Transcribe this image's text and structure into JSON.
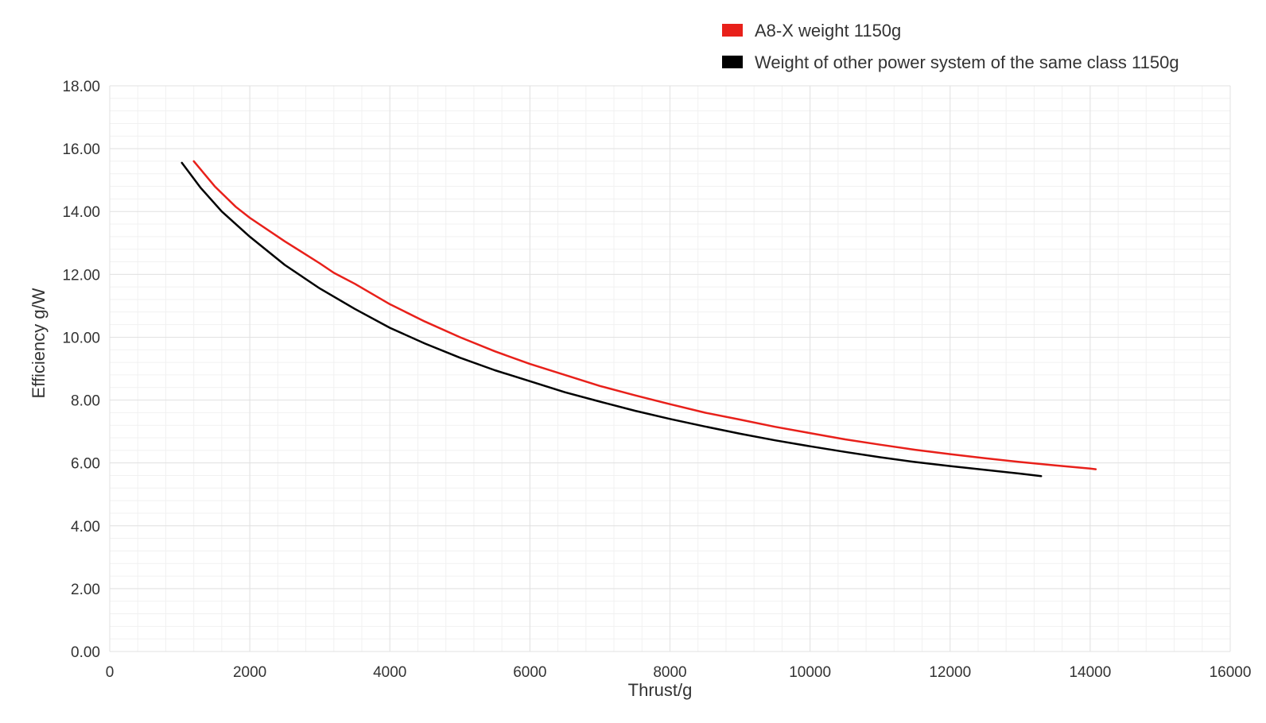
{
  "chart_data": {
    "type": "line",
    "title": "",
    "xlabel": "Thrust/g",
    "ylabel": "Efficiency g/W",
    "xlim": [
      0,
      16000
    ],
    "ylim": [
      0,
      18
    ],
    "x_ticks": [
      "0",
      "2000",
      "4000",
      "6000",
      "8000",
      "10000",
      "12000",
      "14000",
      "16000"
    ],
    "y_ticks": [
      "0.00",
      "2.00",
      "4.00",
      "6.00",
      "8.00",
      "10.00",
      "12.00",
      "14.00",
      "16.00",
      "18.00"
    ],
    "grid": true,
    "legend_position": "top-right",
    "series": [
      {
        "name": "A8-X weight 1150g",
        "color": "#e8201a",
        "points": [
          [
            1200,
            15.6
          ],
          [
            1500,
            14.8
          ],
          [
            1800,
            14.15
          ],
          [
            2000,
            13.8
          ],
          [
            2500,
            13.05
          ],
          [
            3000,
            12.35
          ],
          [
            3200,
            12.05
          ],
          [
            3500,
            11.7
          ],
          [
            4000,
            11.05
          ],
          [
            4500,
            10.5
          ],
          [
            5000,
            10.0
          ],
          [
            5500,
            9.55
          ],
          [
            6000,
            9.15
          ],
          [
            6500,
            8.8
          ],
          [
            7000,
            8.45
          ],
          [
            7500,
            8.15
          ],
          [
            8000,
            7.87
          ],
          [
            8500,
            7.6
          ],
          [
            9000,
            7.38
          ],
          [
            9500,
            7.15
          ],
          [
            10000,
            6.95
          ],
          [
            10500,
            6.75
          ],
          [
            11000,
            6.58
          ],
          [
            11500,
            6.42
          ],
          [
            12000,
            6.28
          ],
          [
            12500,
            6.15
          ],
          [
            13000,
            6.03
          ],
          [
            13500,
            5.92
          ],
          [
            14000,
            5.82
          ],
          [
            14080,
            5.8
          ]
        ]
      },
      {
        "name": "Weight of other power system of the same class 1150g",
        "color": "#000000",
        "points": [
          [
            1030,
            15.55
          ],
          [
            1300,
            14.75
          ],
          [
            1600,
            14.0
          ],
          [
            2000,
            13.2
          ],
          [
            2500,
            12.3
          ],
          [
            3000,
            11.55
          ],
          [
            3500,
            10.9
          ],
          [
            4000,
            10.3
          ],
          [
            4500,
            9.8
          ],
          [
            5000,
            9.35
          ],
          [
            5500,
            8.95
          ],
          [
            6000,
            8.6
          ],
          [
            6500,
            8.25
          ],
          [
            7000,
            7.95
          ],
          [
            7500,
            7.66
          ],
          [
            8000,
            7.4
          ],
          [
            8500,
            7.16
          ],
          [
            9000,
            6.93
          ],
          [
            9500,
            6.72
          ],
          [
            10000,
            6.53
          ],
          [
            10500,
            6.35
          ],
          [
            11000,
            6.18
          ],
          [
            11500,
            6.03
          ],
          [
            12000,
            5.9
          ],
          [
            12500,
            5.78
          ],
          [
            13000,
            5.66
          ],
          [
            13300,
            5.58
          ]
        ]
      }
    ]
  }
}
